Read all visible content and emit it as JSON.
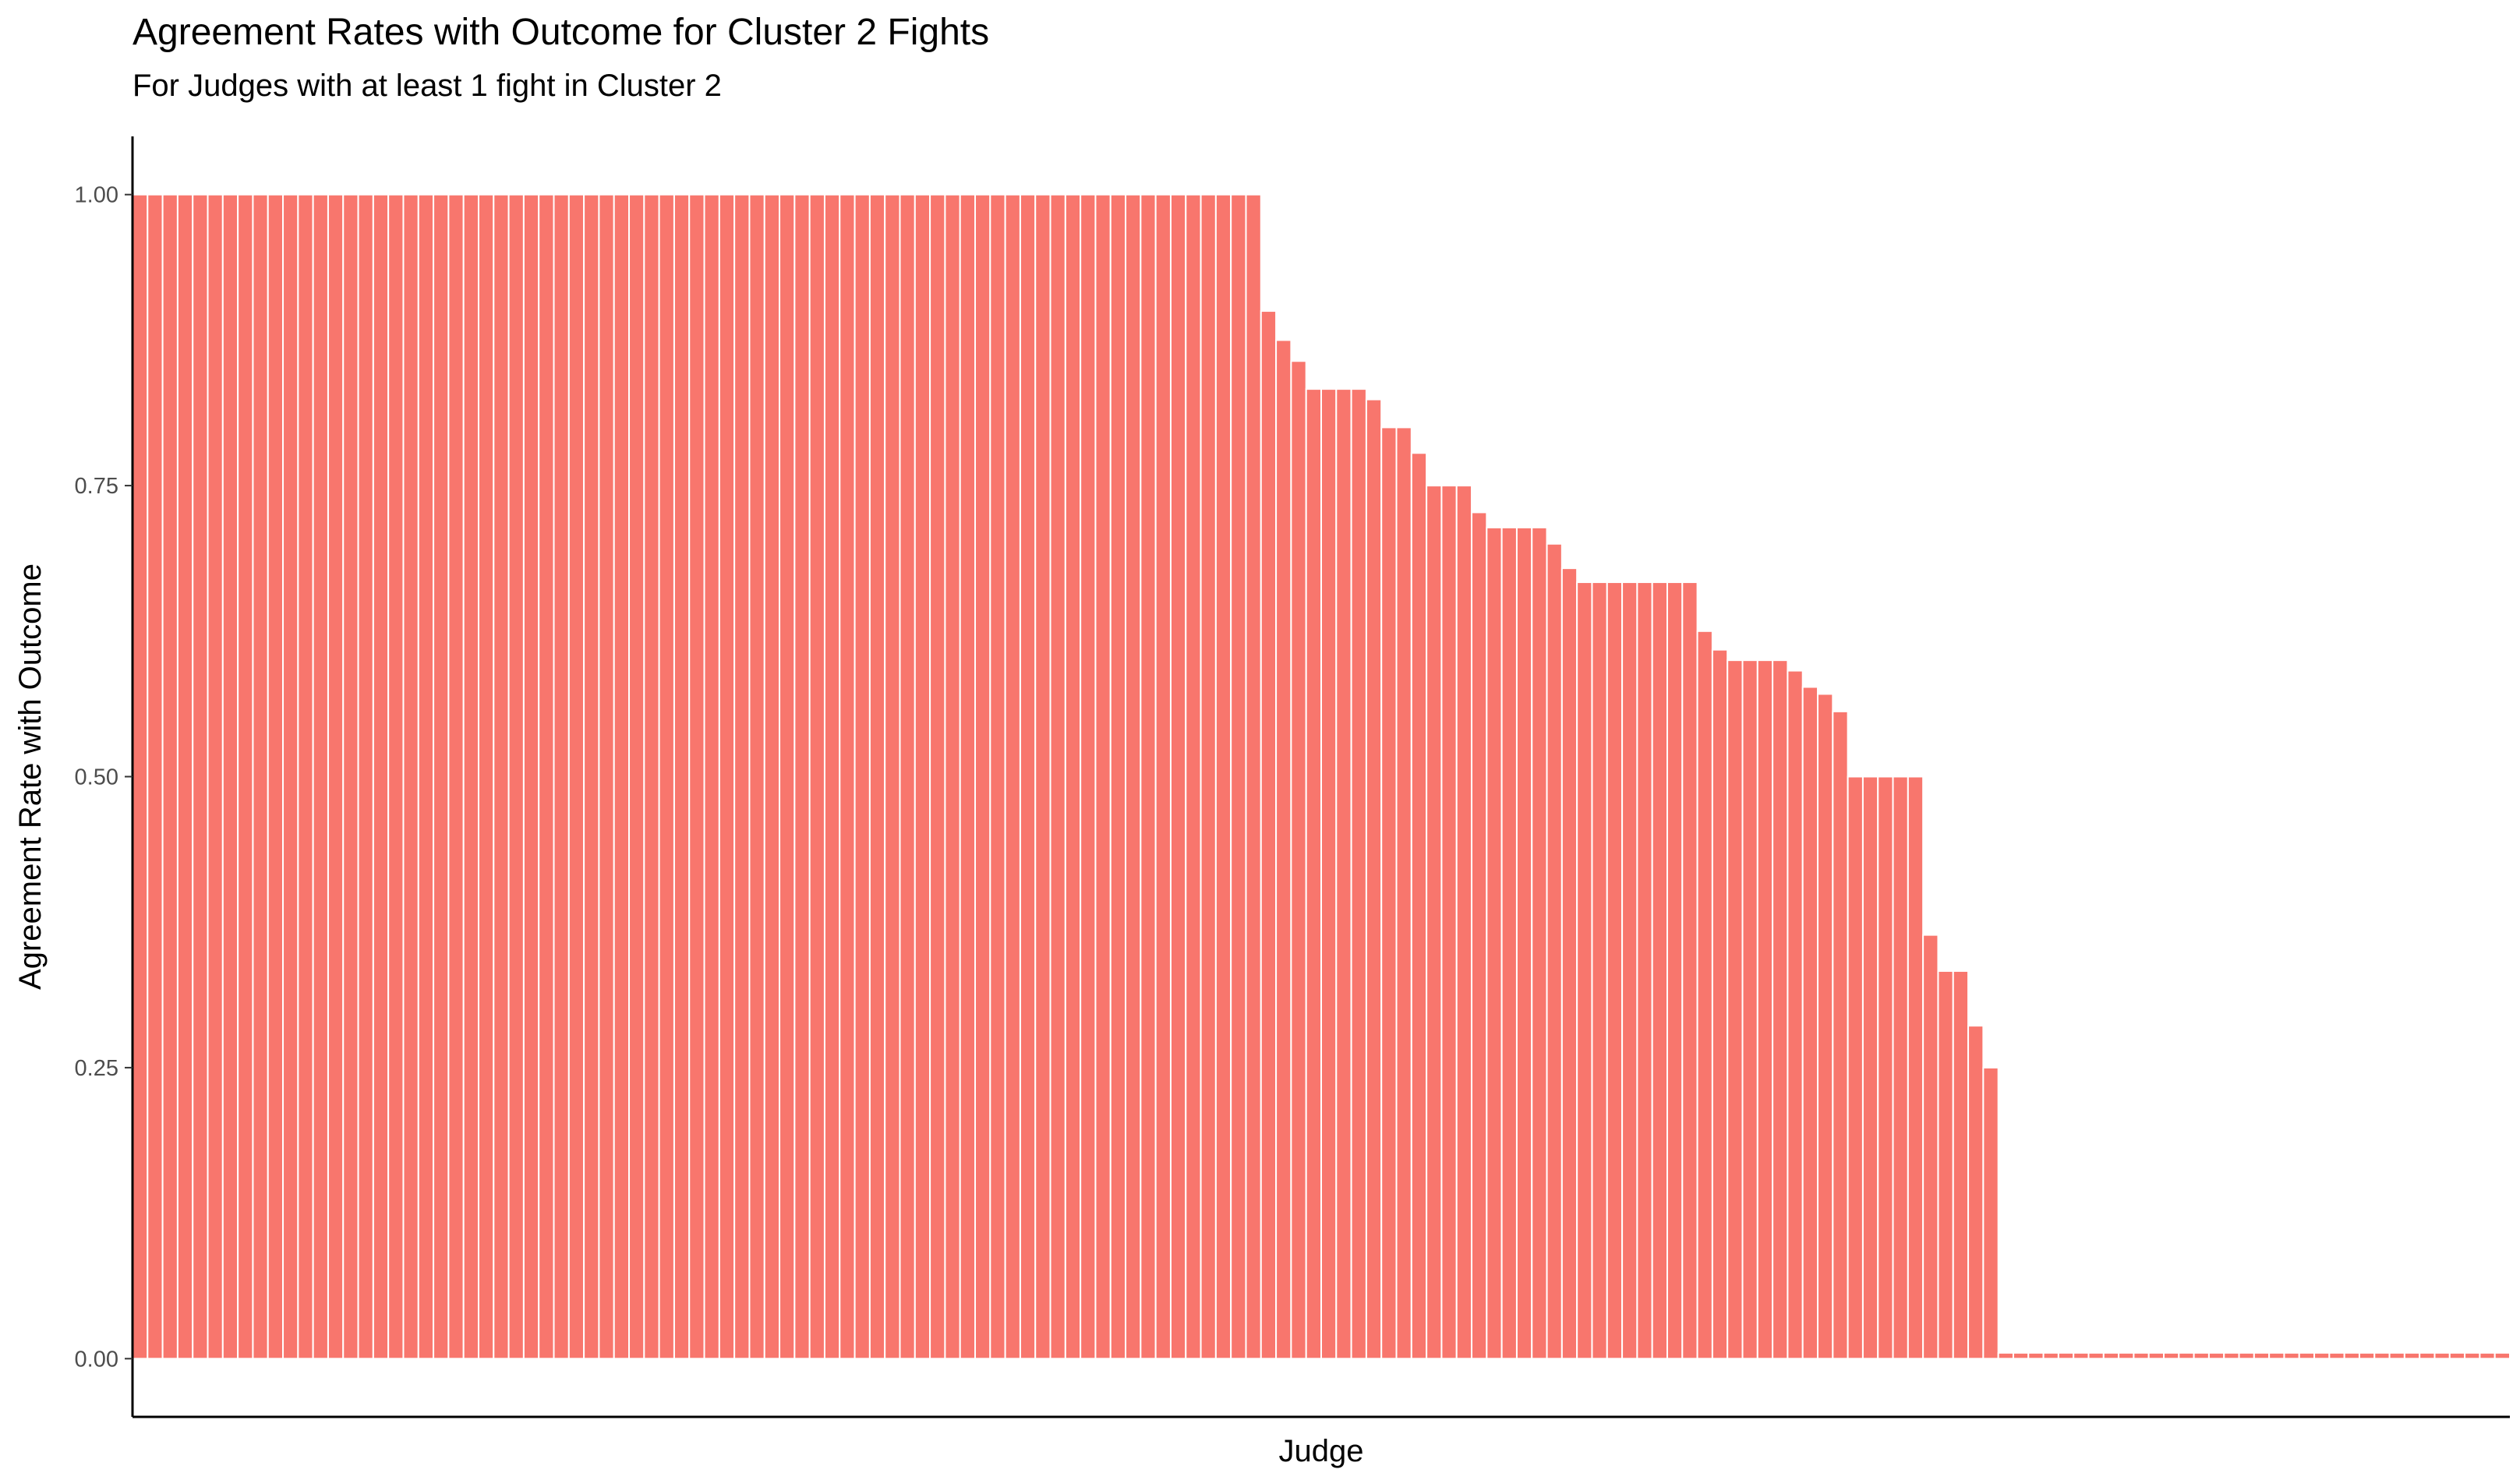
{
  "chart_data": {
    "type": "bar",
    "title": "Agreement Rates with Outcome for Cluster 2 Fights",
    "subtitle": "For Judges with at least 1 fight in Cluster 2",
    "xlabel": "Judge",
    "ylabel": "Agreement Rate with Outcome",
    "ylim": [
      -0.05,
      1.05
    ],
    "yticks": [
      "0.00",
      "0.25",
      "0.50",
      "0.75",
      "1.00"
    ],
    "ytick_values": [
      0,
      0.25,
      0.5,
      0.75,
      1.0
    ],
    "grid": false,
    "x_tick_labels_shown": false,
    "bar_color": "#F8766D",
    "bar_edge_color": "#ffffff",
    "axis_color": "#000000",
    "tick_label_color": "#4d4d4d",
    "values": [
      1,
      1,
      1,
      1,
      1,
      1,
      1,
      1,
      1,
      1,
      1,
      1,
      1,
      1,
      1,
      1,
      1,
      1,
      1,
      1,
      1,
      1,
      1,
      1,
      1,
      1,
      1,
      1,
      1,
      1,
      1,
      1,
      1,
      1,
      1,
      1,
      1,
      1,
      1,
      1,
      1,
      1,
      1,
      1,
      1,
      1,
      1,
      1,
      1,
      1,
      1,
      1,
      1,
      1,
      1,
      1,
      1,
      1,
      1,
      1,
      1,
      1,
      1,
      1,
      1,
      1,
      1,
      1,
      1,
      1,
      1,
      1,
      1,
      1,
      1,
      0.9,
      0.875,
      0.857,
      0.833,
      0.833,
      0.833,
      0.833,
      0.824,
      0.8,
      0.8,
      0.778,
      0.75,
      0.75,
      0.75,
      0.727,
      0.714,
      0.714,
      0.714,
      0.714,
      0.7,
      0.679,
      0.667,
      0.667,
      0.667,
      0.667,
      0.667,
      0.667,
      0.667,
      0.667,
      0.625,
      0.609,
      0.6,
      0.6,
      0.6,
      0.6,
      0.591,
      0.577,
      0.571,
      0.556,
      0.5,
      0.5,
      0.5,
      0.5,
      0.5,
      0.364,
      0.333,
      0.333,
      0.286,
      0.25,
      0.005,
      0.005,
      0.005,
      0.005,
      0.005,
      0.005,
      0.005,
      0.005,
      0.005,
      0.005,
      0.005,
      0.005,
      0.005,
      0.005,
      0.005,
      0.005,
      0.005,
      0.005,
      0.005,
      0.005,
      0.005,
      0.005,
      0.005,
      0.005,
      0.005,
      0.005,
      0.005,
      0.005,
      0.005,
      0.005,
      0.005,
      0.005,
      0.005,
      0.005
    ]
  }
}
